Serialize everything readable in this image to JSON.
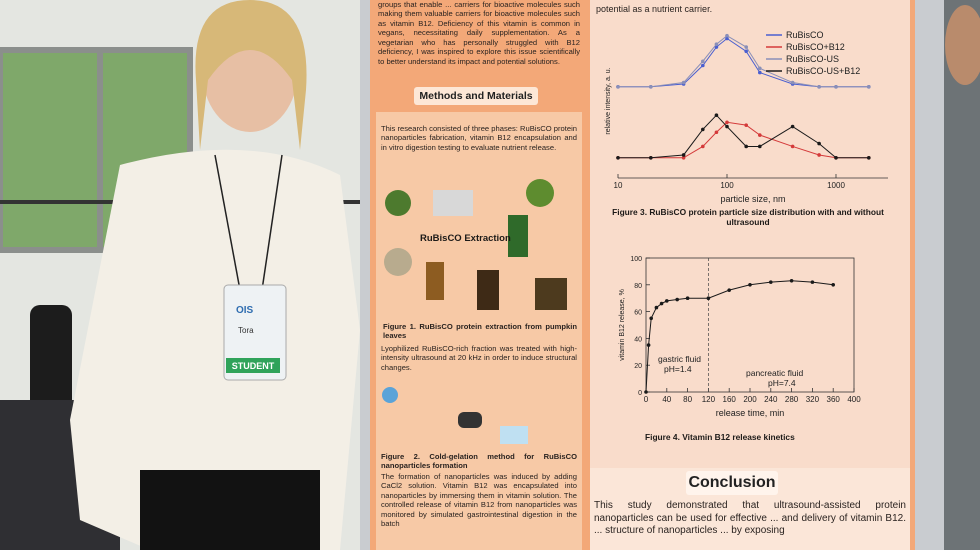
{
  "badge": {
    "logo": "OIS",
    "name": "Tora",
    "role": "STUDENT"
  },
  "poster": {
    "intro_text": "groups that enable ... carriers for bioactive molecules such making them valuable carriers for bioactive molecules such as vitamin B12. Deficiency of this vitamin is common in vegans, necessitating daily supplementation. As a vegetarian who has personally struggled with B12 deficiency, I was inspired to explore this issue scientifically to better understand its impact and potential solutions.",
    "methods": {
      "heading": "Methods and Materials",
      "text": "This research consisted of three phases: RuBisCO protein nanoparticles fabrication, vitamin B12 encapsulation and in vitro digestion testing to evaluate nutrient release.",
      "figure1_label": "RuBisCO Extraction",
      "figure1_caption": "Figure 1. RuBisCO protein extraction from pumpkin leaves",
      "text2": "Lyophilized RuBisCO-rich fraction was treated with high-intensity ultrasound at 20 kHz in order to induce structural changes.",
      "figure2_caption": "Figure 2. Cold-gelation method for RuBisCO nanoparticles formation",
      "text3": "The formation of nanoparticles was induced by adding CaCl2 solution. Vitamin B12 was encapsulated into nanoparticles by immersing them in vitamin solution. The controlled release of vitamin B12 from nanoparticles was monitored by simulated gastrointestinal digestion in the batch"
    },
    "right_top_text": "potential as a nutrient carrier.",
    "conclusion": {
      "heading": "Conclusion",
      "text": "This study demonstrated that ultrasound-assisted protein nanoparticles can be used for effective ... and delivery of vitamin B12. ... structure of nanoparticles ... by exposing"
    }
  },
  "chart_data": [
    {
      "type": "line",
      "caption": "Figure 3. RuBisCO protein particle size distribution with and without ultrasound",
      "x_label": "particle size, nm",
      "y_label": "relative intensity, a. u.",
      "log_x": true,
      "x": [
        10,
        20,
        40,
        60,
        80,
        100,
        150,
        200,
        400,
        700,
        1000,
        2000
      ],
      "xlim": [
        10,
        3000
      ],
      "xticks": [
        10,
        100,
        1000
      ],
      "ylim": [
        0,
        10
      ],
      "series": [
        {
          "name": "RuBisCO",
          "color": "#4a5fd0",
          "values": [
            6,
            6,
            6.2,
            7.5,
            8.8,
            9.4,
            8.5,
            7,
            6.2,
            6,
            6,
            6
          ]
        },
        {
          "name": "RuBisCO+B12",
          "color": "#d43a3a",
          "values": [
            1,
            1,
            1,
            1.8,
            2.8,
            3.5,
            3.3,
            2.6,
            1.8,
            1.2,
            1,
            1
          ]
        },
        {
          "name": "RuBisCO-US",
          "color": "#8a8fb8",
          "values": [
            6,
            6,
            6.3,
            7.8,
            9,
            9.6,
            8.8,
            7.3,
            6.3,
            6,
            6,
            6
          ]
        },
        {
          "name": "RuBisCO-US+B12",
          "color": "#1a1a1a",
          "values": [
            1,
            1,
            1.2,
            3,
            4,
            3.2,
            1.8,
            1.8,
            3.2,
            2,
            1,
            1
          ]
        }
      ]
    },
    {
      "type": "line",
      "caption": "Figure 4. Vitamin B12 release kinetics",
      "x_label": "release time, min",
      "y_label": "vitamin B12 release, %",
      "annotations": [
        "gastric fluid",
        "pH=1.4",
        "pancreatic fluid",
        "pH=7.4"
      ],
      "x": [
        0,
        5,
        10,
        20,
        30,
        40,
        60,
        80,
        120,
        160,
        200,
        240,
        280,
        320,
        360
      ],
      "xlim": [
        0,
        400
      ],
      "xticks": [
        0,
        40,
        80,
        120,
        160,
        200,
        240,
        280,
        320,
        360,
        400
      ],
      "ylim": [
        0,
        100
      ],
      "yticks": [
        0,
        20,
        40,
        60,
        80,
        100
      ],
      "series": [
        {
          "color": "#1a1a1a",
          "values": [
            0,
            35,
            55,
            63,
            66,
            68,
            69,
            70,
            70,
            76,
            80,
            82,
            83,
            82,
            80
          ]
        }
      ]
    }
  ]
}
